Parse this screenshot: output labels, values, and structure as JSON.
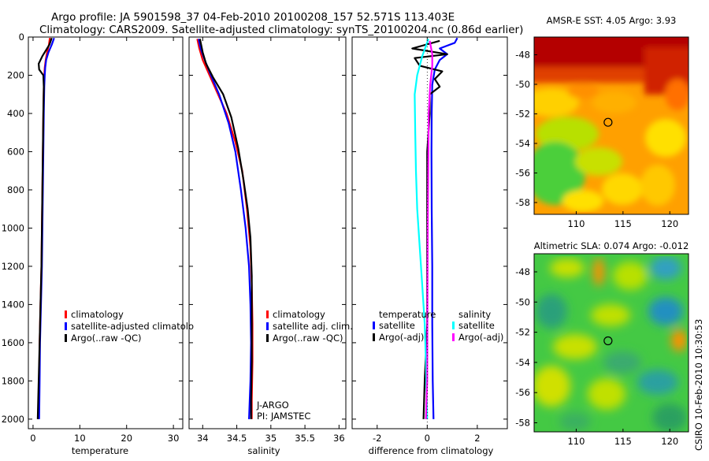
{
  "title": {
    "line1": "Argo profile: JA 5901598_37 04-Feb-2010 20100208_157 52.571S 113.403E",
    "line2": "Climatology: CARS2009. Satellite-adjusted climatology: synTS_20100204.nc (0.86d earlier)"
  },
  "colors": {
    "climatology": "#ff0000",
    "satellite": "#0000ff",
    "argo": "#000000",
    "sal_satellite": "#00ffff",
    "sal_argo": "#ff00ff"
  },
  "sidebar_text": "CSIRO 10-Feb-2010 10:30:53",
  "chart_data": [
    {
      "type": "line",
      "name": "temperature-panel",
      "xlabel": "temperature",
      "ylabel": "",
      "xlim": [
        -1,
        32
      ],
      "ylim": [
        2050,
        0
      ],
      "xticks": [
        "0",
        "10",
        "20",
        "30"
      ],
      "xtick_values": [
        0,
        10,
        20,
        30
      ],
      "yticks": [
        "0",
        "200",
        "400",
        "600",
        "800",
        "1000",
        "1200",
        "1400",
        "1600",
        "1800",
        "2000"
      ],
      "ytick_values": [
        0,
        200,
        400,
        600,
        800,
        1000,
        1200,
        1400,
        1600,
        1800,
        2000
      ],
      "legend": [
        "climatology",
        "satellite-adjusted climatolo",
        "Argo(..raw -QC)"
      ],
      "series": [
        {
          "name": "climatology",
          "color": "#ff0000",
          "points": [
            [
              3.6,
              5
            ],
            [
              3.4,
              40
            ],
            [
              3.0,
              80
            ],
            [
              2.7,
              120
            ],
            [
              2.5,
              160
            ],
            [
              2.4,
              200
            ],
            [
              2.3,
              260
            ],
            [
              2.2,
              400
            ],
            [
              2.1,
              600
            ],
            [
              2.0,
              800
            ],
            [
              1.9,
              1000
            ],
            [
              1.8,
              1200
            ],
            [
              1.6,
              1400
            ],
            [
              1.4,
              1600
            ],
            [
              1.3,
              1800
            ],
            [
              1.2,
              2000
            ]
          ]
        },
        {
          "name": "satellite",
          "color": "#0000ff",
          "points": [
            [
              4.5,
              5
            ],
            [
              4.0,
              40
            ],
            [
              3.3,
              80
            ],
            [
              2.8,
              120
            ],
            [
              2.6,
              160
            ],
            [
              2.5,
              200
            ],
            [
              2.4,
              260
            ],
            [
              2.3,
              400
            ],
            [
              2.2,
              600
            ],
            [
              2.1,
              800
            ],
            [
              2.0,
              1000
            ],
            [
              1.9,
              1200
            ],
            [
              1.7,
              1400
            ],
            [
              1.5,
              1600
            ],
            [
              1.4,
              1800
            ],
            [
              1.3,
              2000
            ]
          ]
        },
        {
          "name": "argo",
          "color": "#000000",
          "points": [
            [
              4.0,
              5
            ],
            [
              3.5,
              40
            ],
            [
              2.0,
              100
            ],
            [
              1.2,
              140
            ],
            [
              1.3,
              170
            ],
            [
              2.2,
              200
            ],
            [
              2.3,
              260
            ],
            [
              2.2,
              400
            ],
            [
              2.1,
              600
            ],
            [
              2.0,
              800
            ],
            [
              1.9,
              1000
            ],
            [
              1.8,
              1200
            ],
            [
              1.6,
              1400
            ],
            [
              1.4,
              1600
            ],
            [
              1.2,
              1800
            ],
            [
              1.0,
              2000
            ]
          ]
        }
      ]
    },
    {
      "type": "line",
      "name": "salinity-panel",
      "xlabel": "salinity",
      "xlim": [
        33.8,
        36.1
      ],
      "ylim": [
        2050,
        0
      ],
      "xticks": [
        "34",
        "34.5",
        "35",
        "35.5",
        "36"
      ],
      "xtick_values": [
        34,
        34.5,
        35,
        35.5,
        36
      ],
      "legend": [
        "climatology",
        "satellite adj. clim.",
        "Argo(..raw -QC)"
      ],
      "annotations": [
        "J-ARGO",
        "PI: JAMSTEC"
      ],
      "series": [
        {
          "name": "climatology",
          "color": "#ff0000",
          "points": [
            [
              33.92,
              10
            ],
            [
              33.95,
              60
            ],
            [
              34.0,
              120
            ],
            [
              34.1,
              200
            ],
            [
              34.2,
              280
            ],
            [
              34.35,
              400
            ],
            [
              34.48,
              550
            ],
            [
              34.58,
              700
            ],
            [
              34.65,
              900
            ],
            [
              34.7,
              1100
            ],
            [
              34.72,
              1300
            ],
            [
              34.73,
              1500
            ],
            [
              34.73,
              1700
            ],
            [
              34.72,
              1900
            ],
            [
              34.72,
              2000
            ]
          ]
        },
        {
          "name": "satellite",
          "color": "#0000ff",
          "points": [
            [
              33.94,
              10
            ],
            [
              33.97,
              60
            ],
            [
              34.03,
              120
            ],
            [
              34.12,
              200
            ],
            [
              34.24,
              300
            ],
            [
              34.38,
              450
            ],
            [
              34.48,
              600
            ],
            [
              34.56,
              800
            ],
            [
              34.63,
              1000
            ],
            [
              34.68,
              1200
            ],
            [
              34.7,
              1400
            ],
            [
              34.71,
              1600
            ],
            [
              34.7,
              1800
            ],
            [
              34.68,
              2000
            ]
          ]
        },
        {
          "name": "argo",
          "color": "#000000",
          "points": [
            [
              33.96,
              10
            ],
            [
              34.0,
              80
            ],
            [
              34.05,
              140
            ],
            [
              34.15,
              210
            ],
            [
              34.3,
              300
            ],
            [
              34.42,
              420
            ],
            [
              34.52,
              580
            ],
            [
              34.6,
              750
            ],
            [
              34.66,
              900
            ],
            [
              34.7,
              1050
            ],
            [
              34.72,
              1250
            ],
            [
              34.72,
              1500
            ],
            [
              34.72,
              1700
            ],
            [
              34.71,
              1900
            ],
            [
              34.71,
              2000
            ]
          ]
        }
      ]
    },
    {
      "type": "line",
      "name": "difference-panel",
      "xlabel": "difference from climatology",
      "xlim": [
        -3,
        3.2
      ],
      "ylim": [
        2050,
        0
      ],
      "xticks": [
        "-2",
        "0",
        "2"
      ],
      "xtick_values": [
        -2,
        0,
        2
      ],
      "legend_left_header": "temperature",
      "legend_right_header": "salinity",
      "legend": [
        "satellite",
        "Argo(-adj)",
        "satellite",
        "Argo(-adj)"
      ],
      "series": [
        {
          "name": "temperature satellite",
          "color": "#0000ff",
          "points": [
            [
              1.2,
              5
            ],
            [
              1.1,
              30
            ],
            [
              0.5,
              60
            ],
            [
              0.8,
              90
            ],
            [
              0.5,
              120
            ],
            [
              0.3,
              170
            ],
            [
              0.2,
              250
            ],
            [
              0.18,
              400
            ],
            [
              0.17,
              600
            ],
            [
              0.18,
              900
            ],
            [
              0.2,
              1200
            ],
            [
              0.2,
              1500
            ],
            [
              0.22,
              1800
            ],
            [
              0.25,
              2000
            ]
          ]
        },
        {
          "name": "temperature argo",
          "color": "#000000",
          "points": [
            [
              0.5,
              20
            ],
            [
              -0.6,
              60
            ],
            [
              0.8,
              90
            ],
            [
              -0.5,
              110
            ],
            [
              -0.3,
              150
            ],
            [
              0.6,
              180
            ],
            [
              0.3,
              220
            ],
            [
              0.5,
              260
            ],
            [
              0.1,
              300
            ],
            [
              0.1,
              400
            ],
            [
              0.0,
              600
            ],
            [
              0.0,
              900
            ],
            [
              0.0,
              1200
            ],
            [
              0.0,
              1500
            ],
            [
              -0.1,
              1800
            ],
            [
              -0.15,
              2000
            ]
          ]
        },
        {
          "name": "salinity satellite",
          "color": "#00ffff",
          "points": [
            [
              0.05,
              10
            ],
            [
              -0.2,
              100
            ],
            [
              -0.4,
              200
            ],
            [
              -0.5,
              300
            ],
            [
              -0.48,
              500
            ],
            [
              -0.45,
              700
            ],
            [
              -0.4,
              900
            ],
            [
              -0.3,
              1100
            ],
            [
              -0.2,
              1300
            ],
            [
              -0.1,
              1500
            ],
            [
              -0.05,
              1700
            ],
            [
              0.0,
              2000
            ]
          ]
        },
        {
          "name": "salinity argo",
          "color": "#ff00ff",
          "points": [
            [
              0.1,
              20
            ],
            [
              0.2,
              90
            ],
            [
              0.2,
              150
            ],
            [
              0.12,
              250
            ],
            [
              0.06,
              400
            ],
            [
              0.04,
              700
            ],
            [
              0.02,
              1000
            ],
            [
              0.01,
              1400
            ],
            [
              0.0,
              1800
            ],
            [
              -0.05,
              2000
            ]
          ]
        }
      ]
    },
    {
      "type": "heatmap",
      "name": "sst-map",
      "title": "AMSR-E SST: 4.05 Argo: 3.93",
      "xlim": [
        105.5,
        122
      ],
      "ylim": [
        -58.8,
        -46.8
      ],
      "xticks": [
        "110",
        "115",
        "120"
      ],
      "xtick_values": [
        110,
        115,
        120
      ],
      "yticks": [
        "-48",
        "-50",
        "-52",
        "-54",
        "-56",
        "-58"
      ],
      "ytick_values": [
        -48,
        -50,
        -52,
        -54,
        -56,
        -58
      ],
      "marker": [
        113.4,
        -52.57
      ]
    },
    {
      "type": "heatmap",
      "name": "sla-map",
      "title": "Altimetric SLA: 0.074 Argo: -0.012",
      "xlim": [
        105.5,
        122
      ],
      "ylim": [
        -58.6,
        -46.8
      ],
      "xticks": [
        "110",
        "115",
        "120"
      ],
      "xtick_values": [
        110,
        115,
        120
      ],
      "yticks": [
        "-48",
        "-50",
        "-52",
        "-54",
        "-56",
        "-58"
      ],
      "ytick_values": [
        -48,
        -50,
        -52,
        -54,
        -56,
        -58
      ],
      "marker": [
        113.4,
        -52.57
      ]
    }
  ]
}
